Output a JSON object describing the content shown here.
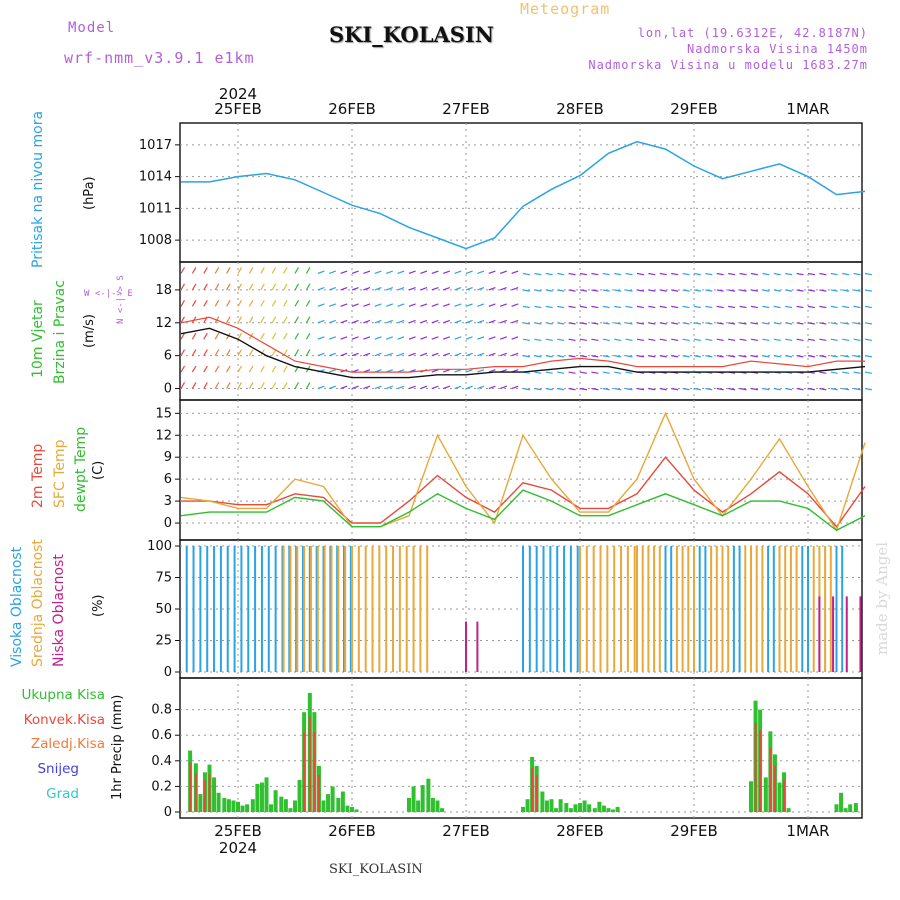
{
  "header": {
    "model_label": "Model",
    "model_value": "wrf-nmm_v3.9.1 e1km",
    "meteogram_label": "Meteogram",
    "station": "SKI_KOLASIN",
    "lonlat": "lon,lat (19.6312E, 42.8187N)",
    "elevation": "Nadmorska Visina 1450m",
    "model_elevation": "Nadmorska Visina u modelu 1683.27m",
    "year": "2024"
  },
  "footer": {
    "station": "SKI_KOLASIN",
    "year": "2024",
    "signature": "made by Angel"
  },
  "date_labels": [
    "25FEB",
    "26FEB",
    "27FEB",
    "28FEB",
    "29FEB",
    "1MAR"
  ],
  "panel_labels": {
    "pressure": {
      "title": "Pritisak na nivou mora",
      "unit": "(hPa)"
    },
    "wind": {
      "title1": "10m Vjetar",
      "title2": "Brzina i Pravac",
      "unit": "(m/s)",
      "compass": "W <-|-> E",
      "compass2": "N <-|-> S"
    },
    "temp": {
      "t2m": "2m Temp",
      "sfc": "SFC Temp",
      "dew": "dewpt Temp",
      "unit": "(C)"
    },
    "cloud": {
      "high": "Visoka Oblacnost",
      "mid": "Srednja Oblacnost",
      "low": "Niska Oblacnost",
      "unit": "(%)"
    },
    "precip": {
      "unit": "1hr Precip (mm)",
      "legend": [
        "Ukupna Kisa",
        "Konvek.Kisa",
        "Zaledj.Kisa",
        "Snijeg",
        "Grad"
      ]
    }
  },
  "colors": {
    "pressure": "#2aa3e6",
    "t2m": "#e8493a",
    "sfc": "#e8a83a",
    "dew": "#2fbf2f",
    "cloud_high": "#2aa3e6",
    "cloud_mid": "#e8a83a",
    "cloud_low": "#c0208a",
    "precip_total": "#2fbf2f",
    "precip_conv": "#e8493a",
    "precip_frz": "#f07a3a",
    "precip_snow": "#4040e0",
    "precip_hail": "#35c7c7",
    "wind_speed": "#111111",
    "gust": "#e8493a"
  },
  "chart_data": [
    {
      "type": "line",
      "name": "pressure",
      "x_days": [
        0,
        0.25,
        0.5,
        0.75,
        1.0,
        1.25,
        1.5,
        1.75,
        2.0,
        2.25,
        2.5,
        2.75,
        3.0,
        3.25,
        3.5,
        3.75,
        4.0,
        4.25,
        4.5,
        4.75,
        5.0,
        5.25,
        5.5,
        5.75,
        6.0
      ],
      "y": [
        1013.5,
        1013.5,
        1014.0,
        1014.3,
        1013.7,
        1012.5,
        1011.3,
        1010.5,
        1009.2,
        1008.2,
        1007.2,
        1008.2,
        1011.2,
        1012.8,
        1014.1,
        1016.2,
        1017.3,
        1016.6,
        1015.0,
        1013.8,
        1014.5,
        1015.2,
        1014.0,
        1012.3,
        1012.6
      ],
      "yticks": [
        1008,
        1011,
        1014,
        1017
      ],
      "ylim": [
        1006.5,
        1018.5
      ]
    },
    {
      "type": "line",
      "name": "wind",
      "x_days": [
        0,
        0.25,
        0.5,
        0.75,
        1.0,
        1.25,
        1.5,
        1.75,
        2.0,
        2.25,
        2.5,
        2.75,
        3.0,
        3.25,
        3.5,
        3.75,
        4.0,
        4.25,
        4.5,
        4.75,
        5.0,
        5.25,
        5.5,
        5.75,
        6.0
      ],
      "speed": [
        10,
        11,
        9,
        6,
        4,
        3,
        2,
        2,
        2,
        2.5,
        2.5,
        3,
        3,
        3.5,
        4,
        4,
        3,
        3,
        3,
        3,
        3,
        3,
        3,
        3.5,
        4
      ],
      "gust": [
        12,
        13,
        11,
        8,
        5,
        4,
        3,
        3,
        3,
        3.5,
        3.5,
        4,
        4,
        5,
        5.5,
        5,
        4,
        4,
        4,
        4,
        5,
        4.5,
        4,
        5,
        5
      ],
      "yticks": [
        0,
        6,
        12,
        18
      ],
      "ylim": [
        -1,
        22
      ]
    },
    {
      "type": "line",
      "name": "temperature",
      "x_days": [
        0,
        0.25,
        0.5,
        0.75,
        1.0,
        1.25,
        1.5,
        1.75,
        2.0,
        2.25,
        2.5,
        2.75,
        3.0,
        3.25,
        3.5,
        3.75,
        4.0,
        4.25,
        4.5,
        4.75,
        5.0,
        5.25,
        5.5,
        5.75,
        6.0
      ],
      "series": [
        {
          "name": "2m Temp",
          "values": [
            3,
            3,
            2.5,
            2.5,
            4,
            3.5,
            0,
            0,
            3,
            6.5,
            3.5,
            1.5,
            5.5,
            4.5,
            2,
            2,
            4,
            9,
            4.5,
            1.5,
            4,
            7,
            4,
            -0.5,
            5
          ]
        },
        {
          "name": "SFC Temp",
          "values": [
            3.5,
            3,
            2,
            2,
            6,
            5,
            -0.5,
            -0.5,
            1,
            12,
            5,
            0,
            12,
            6,
            1.5,
            1.5,
            6,
            15,
            6,
            1,
            6,
            11.5,
            5,
            -1,
            11
          ]
        },
        {
          "name": "dewpt Temp",
          "values": [
            1,
            1.5,
            1.5,
            1.5,
            3.5,
            3,
            -0.5,
            -0.5,
            1.5,
            4,
            2,
            0.5,
            4.5,
            3,
            1,
            1,
            2.5,
            4,
            2.5,
            1,
            3,
            3,
            2,
            -1,
            1
          ]
        }
      ],
      "yticks": [
        0,
        3,
        6,
        9,
        12,
        15
      ],
      "ylim": [
        -1.5,
        16
      ]
    },
    {
      "type": "bar",
      "name": "cloud",
      "yticks": [
        0,
        25,
        50,
        75,
        100
      ],
      "ylim": [
        0,
        100
      ]
    },
    {
      "type": "bar",
      "name": "precip",
      "x_days": [
        0.08,
        0.13,
        0.17,
        0.21,
        0.25,
        0.29,
        0.33,
        0.38,
        0.42,
        0.46,
        0.5,
        0.54,
        0.58,
        0.63,
        0.67,
        0.71,
        0.75,
        0.79,
        0.83,
        0.88,
        0.92,
        0.96,
        1.0,
        1.04,
        1.08,
        1.13,
        1.17,
        1.21,
        1.25,
        1.29,
        1.33,
        1.38,
        1.42,
        1.46,
        1.5,
        1.54,
        2.0,
        2.04,
        2.08,
        2.12,
        2.17,
        2.21,
        2.25,
        2.29,
        3.0,
        3.04,
        3.08,
        3.12,
        3.17,
        3.21,
        3.25,
        3.29,
        3.33,
        3.38,
        3.42,
        3.46,
        3.5,
        3.54,
        3.58,
        3.63,
        3.67,
        3.71,
        3.75,
        3.79,
        3.83,
        5.0,
        5.04,
        5.08,
        5.13,
        5.17,
        5.21,
        5.25,
        5.29,
        5.33,
        5.75,
        5.79,
        5.83,
        5.87,
        5.92
      ],
      "total": [
        0.48,
        0.38,
        0.14,
        0.31,
        0.37,
        0.27,
        0.15,
        0.11,
        0.1,
        0.09,
        0.08,
        0.05,
        0.06,
        0.1,
        0.22,
        0.23,
        0.27,
        0.06,
        0.17,
        0.12,
        0.1,
        0.03,
        0.09,
        0.25,
        0.78,
        0.93,
        0.78,
        0.36,
        0.09,
        0.14,
        0.2,
        0.11,
        0.16,
        0.05,
        0.04,
        0.02,
        0.11,
        0.2,
        0.09,
        0.21,
        0.26,
        0.11,
        0.09,
        0.03,
        0.04,
        0.1,
        0.43,
        0.36,
        0.16,
        0.09,
        0.1,
        0.03,
        0.1,
        0.07,
        0.03,
        0.06,
        0.07,
        0.09,
        0.06,
        0.03,
        0.08,
        0.05,
        0.03,
        0.02,
        0.04,
        0.24,
        0.87,
        0.8,
        0.27,
        0.63,
        0.45,
        0.23,
        0.31,
        0.03,
        0.06,
        0.15,
        0.03,
        0.06,
        0.07
      ],
      "yticks": [
        0,
        0.2,
        0.4,
        0.6,
        0.8
      ],
      "ylim": [
        0,
        1.0
      ]
    }
  ]
}
